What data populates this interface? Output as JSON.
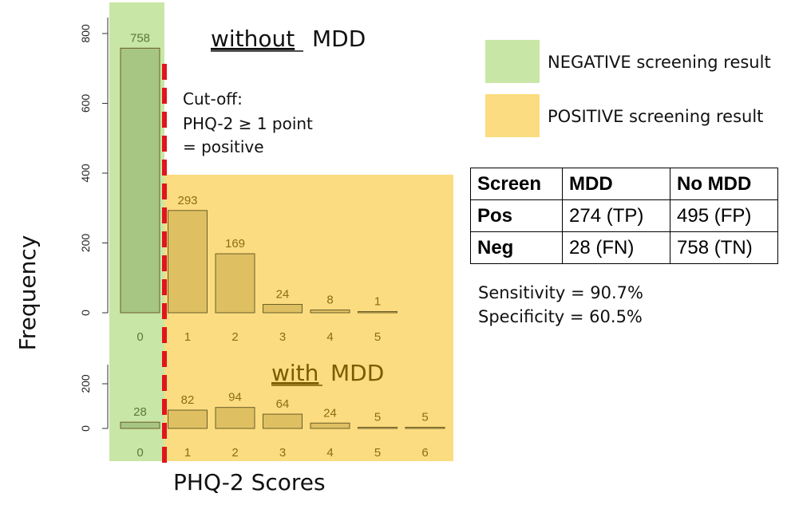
{
  "colors": {
    "negative_bg": "#c8e6a5",
    "positive_bg": "#fcdc80",
    "bar_negative": "#a7c683",
    "bar_positive": "#dec063",
    "bar_border": "#6b5e28",
    "cutoff_line": "#e0151c",
    "axis_text": "#222222",
    "data_label_neg": "#587a3c",
    "data_label_pos": "#8a6d14",
    "sub_title_pos": "#7a5c00"
  },
  "labels": {
    "y_axis": "Frequency",
    "x_axis": "PHQ-2 Scores",
    "title_top_underlined": "without",
    "title_top_rest": "MDD",
    "title_bottom_underlined": "with",
    "title_bottom_rest": "MDD",
    "cutoff_line1": "Cut-off:",
    "cutoff_line2": "PHQ-2 ≥ 1 point",
    "cutoff_line3": "= positive"
  },
  "legend": [
    {
      "label": "NEGATIVE screening result",
      "color": "#c8e6a5"
    },
    {
      "label": "POSITIVE screening result",
      "color": "#fcdc80"
    }
  ],
  "table": {
    "headers": [
      "Screen",
      "MDD",
      "No MDD"
    ],
    "rows": [
      [
        "Pos",
        "274 (TP)",
        "495 (FP)"
      ],
      [
        "Neg",
        "28 (FN)",
        "758 (TN)"
      ]
    ]
  },
  "metrics": {
    "sensitivity": "Sensitivity = 90.7%",
    "specificity": "Specificity = 60.5%"
  },
  "chart_data": [
    {
      "type": "bar",
      "title": "without MDD",
      "categories": [
        "0",
        "1",
        "2",
        "3",
        "4",
        "5"
      ],
      "values": [
        758,
        293,
        169,
        24,
        8,
        1
      ],
      "ylabel": "Frequency",
      "xlabel": "PHQ-2 Scores",
      "ylim": [
        0,
        800
      ],
      "yticks": [
        0,
        200,
        400,
        600,
        800
      ],
      "cutoff": 1
    },
    {
      "type": "bar",
      "title": "with MDD",
      "categories": [
        "0",
        "1",
        "2",
        "3",
        "4",
        "5",
        "6"
      ],
      "values": [
        28,
        82,
        94,
        64,
        24,
        5,
        5
      ],
      "ylabel": "Frequency",
      "xlabel": "PHQ-2 Scores",
      "ylim": [
        0,
        200
      ],
      "yticks": [
        0,
        200
      ],
      "cutoff": 1
    }
  ]
}
